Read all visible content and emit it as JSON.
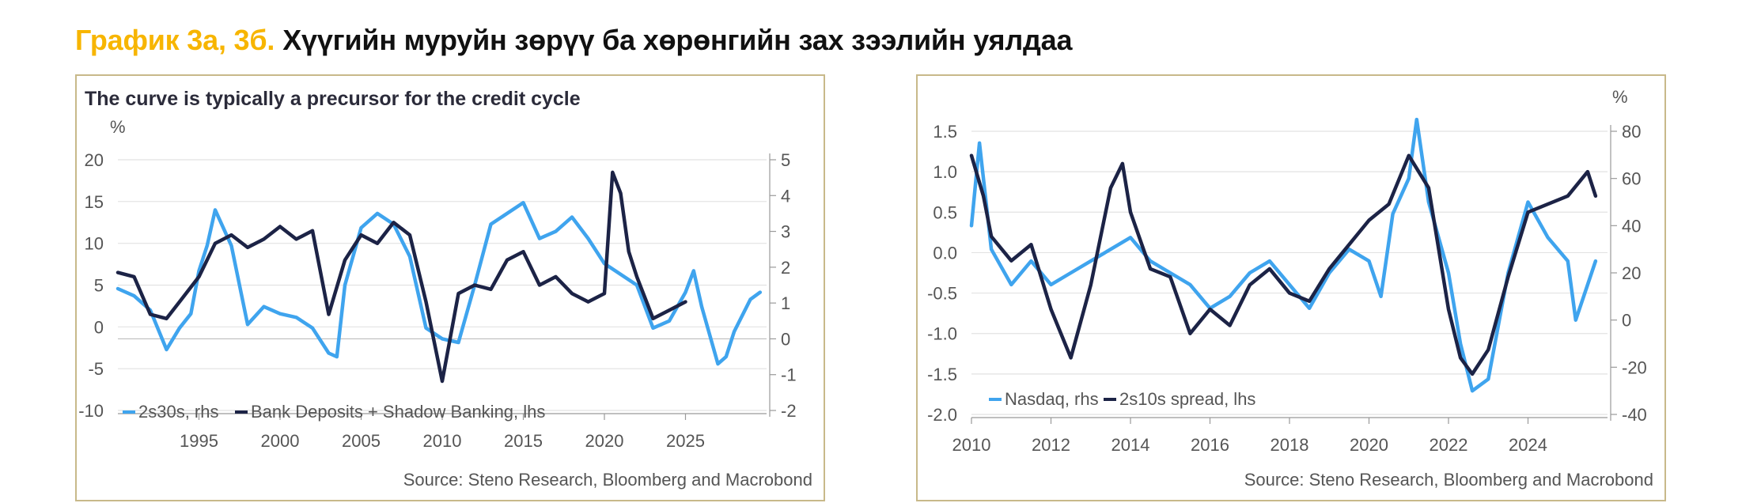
{
  "header": {
    "label": "График 3а, 3б.",
    "title": "Хүүгийн муруйн зөрүү ба хөрөнгийн зах зээлийн уялдаа"
  },
  "colors": {
    "light": "#3fa4ee",
    "dark": "#1c2346",
    "border": "#c8b98a",
    "grid": "#e2e2e2",
    "axis": "#555555"
  },
  "chart_data": [
    {
      "type": "line",
      "title": "The curve is typically a precursor for the credit cycle",
      "ylabel_left": "%",
      "left_axis": {
        "min": -10,
        "max": 20,
        "ticks": [
          20,
          15,
          10,
          5,
          0,
          -5,
          -10
        ]
      },
      "right_axis": {
        "min": -2,
        "max": 5,
        "ticks": [
          5,
          4,
          3,
          2,
          1,
          0,
          -1,
          -2
        ]
      },
      "x_axis": {
        "min": 1990,
        "max": 2030,
        "ticks": [
          1995,
          2000,
          2005,
          2010,
          2015,
          2020,
          2025
        ]
      },
      "legend": [
        "2s30s, rhs",
        "Bank Deposits + Shadow Banking, lhs"
      ],
      "source": "Source: Steno Research, Bloomberg and Macrobond",
      "series": [
        {
          "name": "2s30s, rhs",
          "axis": "right",
          "color": "#3fa4ee",
          "points": [
            [
              1990,
              1.4
            ],
            [
              1991,
              1.2
            ],
            [
              1992,
              0.8
            ],
            [
              1993,
              -0.3
            ],
            [
              1993.8,
              0.3
            ],
            [
              1994.5,
              0.7
            ],
            [
              1995,
              1.9
            ],
            [
              1995.5,
              2.6
            ],
            [
              1996,
              3.6
            ],
            [
              1997,
              2.6
            ],
            [
              1998,
              0.4
            ],
            [
              1999,
              0.9
            ],
            [
              2000,
              0.7
            ],
            [
              2001,
              0.6
            ],
            [
              2002,
              0.3
            ],
            [
              2003,
              -0.4
            ],
            [
              2003.5,
              -0.5
            ],
            [
              2004,
              1.5
            ],
            [
              2005,
              3.1
            ],
            [
              2006,
              3.5
            ],
            [
              2007,
              3.2
            ],
            [
              2008,
              2.3
            ],
            [
              2009,
              0.3
            ],
            [
              2010,
              0.0
            ],
            [
              2011,
              -0.1
            ],
            [
              2012,
              1.5
            ],
            [
              2013,
              3.2
            ],
            [
              2014,
              3.5
            ],
            [
              2015,
              3.8
            ],
            [
              2016,
              2.8
            ],
            [
              2017,
              3.0
            ],
            [
              2018,
              3.4
            ],
            [
              2019,
              2.8
            ],
            [
              2020,
              2.1
            ],
            [
              2021,
              1.8
            ],
            [
              2022,
              1.5
            ],
            [
              2023,
              0.3
            ],
            [
              2024,
              0.5
            ],
            [
              2025,
              1.3
            ],
            [
              2025.5,
              1.9
            ],
            [
              2026,
              0.9
            ],
            [
              2027,
              -0.7
            ],
            [
              2027.5,
              -0.5
            ],
            [
              2028,
              0.2
            ],
            [
              2029,
              1.1
            ],
            [
              2029.6,
              1.3
            ]
          ]
        },
        {
          "name": "Bank Deposits + Shadow Banking, lhs",
          "axis": "left",
          "color": "#1c2346",
          "points": [
            [
              1990,
              6.5
            ],
            [
              1991,
              6.0
            ],
            [
              1992,
              1.5
            ],
            [
              1993,
              1.0
            ],
            [
              1994,
              3.5
            ],
            [
              1995,
              6.0
            ],
            [
              1996,
              10.0
            ],
            [
              1997,
              11.0
            ],
            [
              1998,
              9.5
            ],
            [
              1999,
              10.5
            ],
            [
              2000,
              12.0
            ],
            [
              2001,
              10.5
            ],
            [
              2002,
              11.5
            ],
            [
              2003,
              1.5
            ],
            [
              2004,
              8.0
            ],
            [
              2005,
              11.0
            ],
            [
              2006,
              10.0
            ],
            [
              2007,
              12.5
            ],
            [
              2008,
              11.0
            ],
            [
              2009,
              3.0
            ],
            [
              2010,
              -6.5
            ],
            [
              2011,
              4.0
            ],
            [
              2012,
              5.0
            ],
            [
              2013,
              4.5
            ],
            [
              2014,
              8.0
            ],
            [
              2015,
              9.0
            ],
            [
              2016,
              5.0
            ],
            [
              2017,
              6.0
            ],
            [
              2018,
              4.0
            ],
            [
              2019,
              3.0
            ],
            [
              2020,
              4.0
            ],
            [
              2020.5,
              18.5
            ],
            [
              2021,
              16.0
            ],
            [
              2021.5,
              9.0
            ],
            [
              2022,
              6.0
            ],
            [
              2023,
              1.0
            ],
            [
              2024,
              2.0
            ],
            [
              2025,
              3.0
            ]
          ]
        }
      ]
    },
    {
      "type": "line",
      "title": "",
      "ylabel_right": "%",
      "left_axis": {
        "min": -2.0,
        "max": 1.5,
        "ticks": [
          1.5,
          1.0,
          0.5,
          0.0,
          -0.5,
          -1.0,
          -1.5,
          -2.0
        ]
      },
      "right_axis": {
        "min": -40,
        "max": 80,
        "ticks": [
          80,
          60,
          40,
          20,
          0,
          -20,
          -40
        ]
      },
      "x_axis": {
        "min": 2010,
        "max": 2026,
        "ticks": [
          2010,
          2012,
          2014,
          2016,
          2018,
          2020,
          2022,
          2024
        ]
      },
      "legend": [
        "Nasdaq, rhs",
        "2s10s spread, lhs"
      ],
      "source": "Source: Steno Research, Bloomberg and Macrobond",
      "series": [
        {
          "name": "Nasdaq, rhs",
          "axis": "right",
          "color": "#3fa4ee",
          "points": [
            [
              2010,
              40
            ],
            [
              2010.2,
              75
            ],
            [
              2010.5,
              30
            ],
            [
              2011,
              15
            ],
            [
              2011.5,
              25
            ],
            [
              2012,
              15
            ],
            [
              2012.5,
              20
            ],
            [
              2013,
              25
            ],
            [
              2013.5,
              30
            ],
            [
              2014,
              35
            ],
            [
              2014.5,
              25
            ],
            [
              2015,
              20
            ],
            [
              2015.5,
              15
            ],
            [
              2016,
              5
            ],
            [
              2016.5,
              10
            ],
            [
              2017,
              20
            ],
            [
              2017.5,
              25
            ],
            [
              2018,
              15
            ],
            [
              2018.5,
              5
            ],
            [
              2019,
              20
            ],
            [
              2019.5,
              30
            ],
            [
              2020,
              25
            ],
            [
              2020.3,
              10
            ],
            [
              2020.6,
              45
            ],
            [
              2021,
              60
            ],
            [
              2021.2,
              85
            ],
            [
              2021.5,
              50
            ],
            [
              2022,
              20
            ],
            [
              2022.3,
              -10
            ],
            [
              2022.6,
              -30
            ],
            [
              2023,
              -25
            ],
            [
              2023.5,
              20
            ],
            [
              2024,
              50
            ],
            [
              2024.5,
              35
            ],
            [
              2025,
              25
            ],
            [
              2025.2,
              0
            ],
            [
              2025.5,
              15
            ],
            [
              2025.7,
              25
            ]
          ]
        },
        {
          "name": "2s10s spread, lhs",
          "axis": "left",
          "color": "#1c2346",
          "points": [
            [
              2010,
              1.2
            ],
            [
              2010.3,
              0.7
            ],
            [
              2010.5,
              0.2
            ],
            [
              2011,
              -0.1
            ],
            [
              2011.5,
              0.1
            ],
            [
              2012,
              -0.7
            ],
            [
              2012.5,
              -1.3
            ],
            [
              2013,
              -0.4
            ],
            [
              2013.5,
              0.8
            ],
            [
              2013.8,
              1.1
            ],
            [
              2014,
              0.5
            ],
            [
              2014.5,
              -0.2
            ],
            [
              2015,
              -0.3
            ],
            [
              2015.5,
              -1.0
            ],
            [
              2016,
              -0.7
            ],
            [
              2016.5,
              -0.9
            ],
            [
              2017,
              -0.4
            ],
            [
              2017.5,
              -0.2
            ],
            [
              2018,
              -0.5
            ],
            [
              2018.5,
              -0.6
            ],
            [
              2019,
              -0.2
            ],
            [
              2019.5,
              0.1
            ],
            [
              2020,
              0.4
            ],
            [
              2020.5,
              0.6
            ],
            [
              2021,
              1.2
            ],
            [
              2021.5,
              0.8
            ],
            [
              2022,
              -0.7
            ],
            [
              2022.3,
              -1.3
            ],
            [
              2022.6,
              -1.5
            ],
            [
              2023,
              -1.2
            ],
            [
              2023.5,
              -0.3
            ],
            [
              2024,
              0.5
            ],
            [
              2024.5,
              0.6
            ],
            [
              2025,
              0.7
            ],
            [
              2025.5,
              1.0
            ],
            [
              2025.7,
              0.7
            ]
          ]
        }
      ]
    }
  ]
}
